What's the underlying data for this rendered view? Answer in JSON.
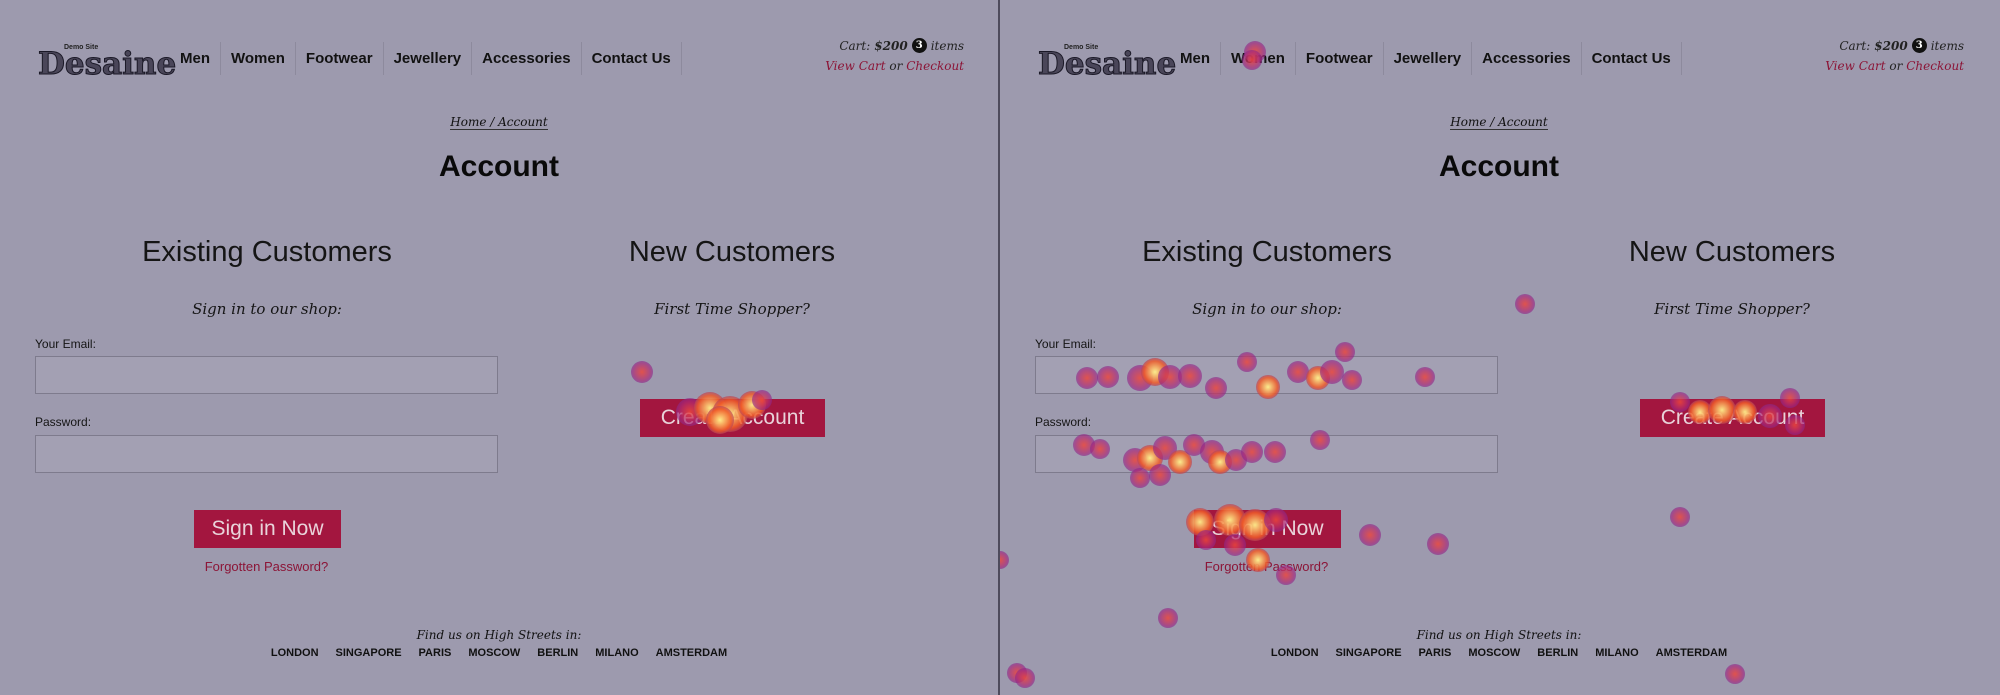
{
  "header": {
    "logo_small": "Demo Site",
    "logo_main": "Desaine",
    "nav": [
      "Men",
      "Women",
      "Footwear",
      "Jewellery",
      "Accessories",
      "Contact Us"
    ],
    "cart_prefix": "Cart:",
    "cart_amount": "$200",
    "cart_count": "3",
    "cart_suffix": "items",
    "view_cart": "View Cart",
    "or_text": "or",
    "checkout": "Checkout"
  },
  "breadcrumb": "Home / Account",
  "page_title": "Account",
  "existing": {
    "title": "Existing Customers",
    "subtitle": "Sign in to our shop:",
    "email_label": "Your Email:",
    "password_label": "Password:",
    "signin_button": "Sign in Now",
    "forgot": "Forgotten Password?"
  },
  "new_customers": {
    "title": "New Customers",
    "subtitle": "First Time Shopper?",
    "create_button": "Create Account"
  },
  "footer": {
    "find_us": "Find us on High Streets in:",
    "cities": [
      "LONDON",
      "SINGAPORE",
      "PARIS",
      "MOSCOW",
      "BERLIN",
      "MILANO",
      "AMSTERDAM"
    ]
  },
  "colors": {
    "background": "#9d9aae",
    "accent": "#a3163f",
    "link": "#8c1537"
  }
}
